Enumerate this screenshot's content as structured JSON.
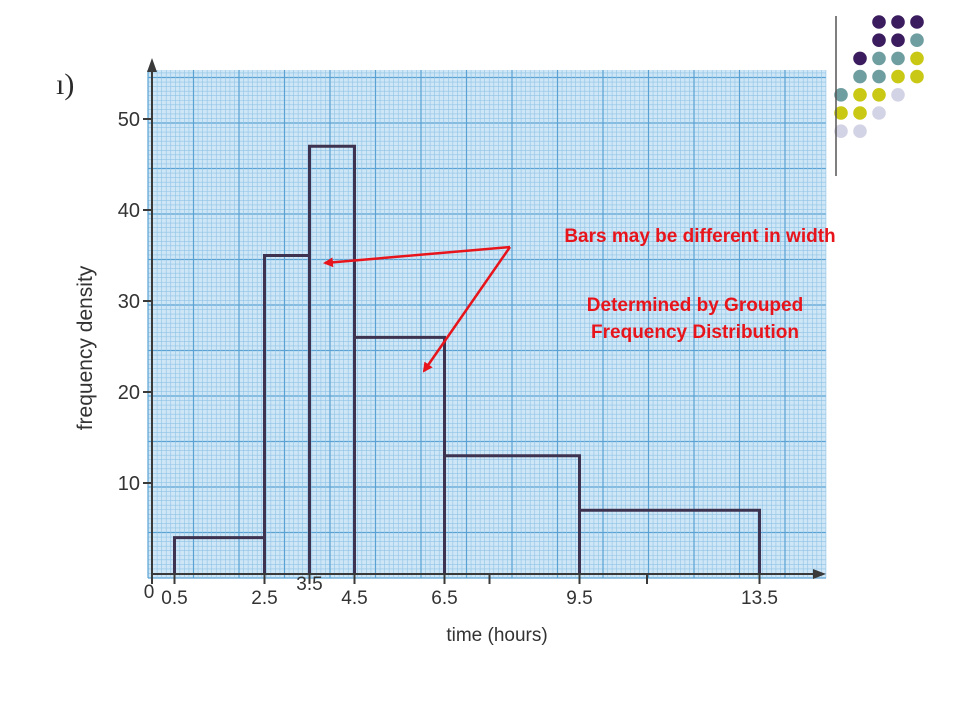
{
  "part_label": "ı)",
  "annotations": {
    "note1": "Bars may be different in width",
    "note2_line1": "Determined by Grouped",
    "note2_line2": "Frequency Distribution",
    "arrow_color": "#e8141b"
  },
  "decor": {
    "dot_colors": [
      "#3b1c5e",
      "#6f9ea0",
      "#c9c814",
      "#d3d3e6"
    ]
  },
  "chart_data": {
    "type": "bar",
    "subtype": "histogram",
    "xlabel": "time (hours)",
    "ylabel": "frequency density",
    "bins": [
      {
        "from": 0.5,
        "to": 2.5,
        "value": 4
      },
      {
        "from": 2.5,
        "to": 3.5,
        "value": 35
      },
      {
        "from": 3.5,
        "to": 4.5,
        "value": 47
      },
      {
        "from": 4.5,
        "to": 6.5,
        "value": 26
      },
      {
        "from": 6.5,
        "to": 9.5,
        "value": 13
      },
      {
        "from": 9.5,
        "to": 13.5,
        "value": 7
      }
    ],
    "x_tick_labels": [
      "0",
      "0.5",
      "2.5",
      "3.5",
      "4.5",
      "6.5",
      "9.5",
      "13.5"
    ],
    "x_tick_values": [
      0,
      0.5,
      2.5,
      3.5,
      4.5,
      6.5,
      9.5,
      13.5
    ],
    "y_tick_labels": [
      "10",
      "20",
      "30",
      "40",
      "50"
    ],
    "y_tick_values": [
      10,
      20,
      30,
      40,
      50
    ],
    "xlim": [
      0,
      15
    ],
    "ylim": [
      0,
      55
    ],
    "grid": true,
    "colors": {
      "paper": "#cfe6f6",
      "grid_minor": "#8fc3e6",
      "grid_major": "#5aa2d4",
      "bar_edge": "#3d3350",
      "axis": "#3a3a3a"
    }
  }
}
